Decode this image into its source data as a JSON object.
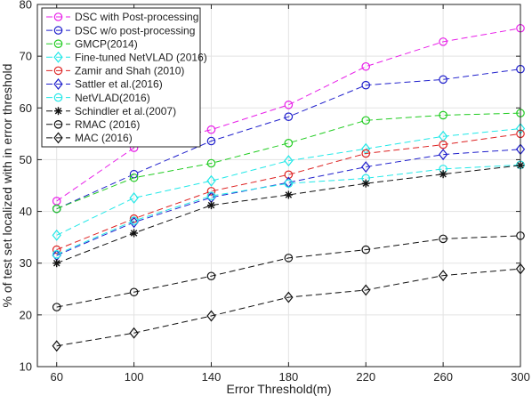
{
  "chart_data": {
    "type": "line",
    "title": "",
    "xlabel": "Error Threshold(m)",
    "ylabel": "% of test set localized with in error threshold",
    "x": [
      60,
      100,
      140,
      180,
      220,
      260,
      300
    ],
    "xlim": [
      50,
      300
    ],
    "ylim": [
      10,
      80
    ],
    "xticks": [
      "60",
      "100",
      "140",
      "180",
      "220",
      "260",
      "300"
    ],
    "yticks": [
      "10",
      "20",
      "30",
      "40",
      "50",
      "60",
      "70",
      "80"
    ],
    "grid": true,
    "legend_position": "top-left",
    "series": [
      {
        "name": "DSC with Post-processing",
        "color": "#e81ee8",
        "marker": "circle",
        "values": [
          42.0,
          52.3,
          55.8,
          60.6,
          68.0,
          72.8,
          75.4
        ]
      },
      {
        "name": "DSC w/o post-processing",
        "color": "#2020cc",
        "marker": "circle",
        "values": [
          40.5,
          47.2,
          53.6,
          58.3,
          64.4,
          65.5,
          67.5
        ]
      },
      {
        "name": "GMCP(2014)",
        "color": "#22cc22",
        "marker": "circle",
        "values": [
          40.5,
          46.5,
          49.3,
          53.2,
          57.6,
          58.6,
          59.0
        ]
      },
      {
        "name": "Fine-tuned NetVLAD (2016)",
        "color": "#22e8e8",
        "marker": "diamond",
        "values": [
          35.4,
          42.6,
          45.9,
          49.8,
          52.1,
          54.5,
          56.0
        ]
      },
      {
        "name": "Zamir and Shah (2010)",
        "color": "#dd2222",
        "marker": "circle",
        "values": [
          32.6,
          38.6,
          43.9,
          47.1,
          51.2,
          52.9,
          55.0
        ]
      },
      {
        "name": "Sattler et al.(2016)",
        "color": "#2020cc",
        "marker": "diamond",
        "values": [
          31.5,
          37.9,
          42.7,
          45.6,
          48.6,
          51.0,
          52.0
        ]
      },
      {
        "name": "NetVLAD(2016)",
        "color": "#22e8e8",
        "marker": "circle",
        "values": [
          31.7,
          38.2,
          43.0,
          45.4,
          46.4,
          48.2,
          49.0
        ]
      },
      {
        "name": "Schindler et al.(2007)",
        "color": "#111111",
        "marker": "star",
        "values": [
          30.0,
          35.8,
          41.2,
          43.2,
          45.4,
          47.2,
          48.9
        ]
      },
      {
        "name": "RMAC (2016)",
        "color": "#111111",
        "marker": "circle",
        "values": [
          21.5,
          24.4,
          27.5,
          31.0,
          32.6,
          34.7,
          35.3
        ]
      },
      {
        "name": "MAC (2016)",
        "color": "#111111",
        "marker": "diamond",
        "values": [
          14.0,
          16.5,
          19.8,
          23.4,
          24.8,
          27.6,
          28.9
        ]
      }
    ]
  }
}
